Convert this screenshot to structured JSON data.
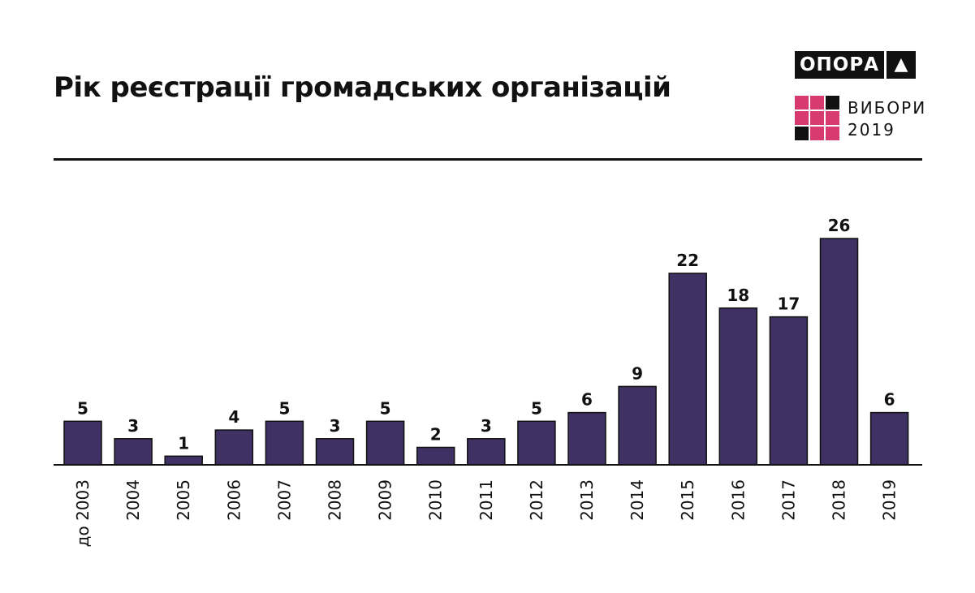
{
  "header": {
    "title": "Рік реєстрації громадських організацій"
  },
  "brand": {
    "name": "ОПОРА",
    "mark_symbol": "▲",
    "elections_label": "ВИБОРИ",
    "elections_year": "2019",
    "grid_colors": [
      "#d63a6e",
      "#d63a6e",
      "#111111",
      "#d63a6e",
      "#d63a6e",
      "#d63a6e",
      "#111111",
      "#d63a6e",
      "#d63a6e"
    ]
  },
  "colors": {
    "bar": "#3f3163",
    "bar_outline": "#111111",
    "text": "#111111",
    "accent": "#d63a6e"
  },
  "chart_data": {
    "type": "bar",
    "title": "Рік реєстрації громадських організацій",
    "categories": [
      "до 2003",
      "2004",
      "2005",
      "2006",
      "2007",
      "2008",
      "2009",
      "2010",
      "2011",
      "2012",
      "2013",
      "2014",
      "2015",
      "2016",
      "2017",
      "2018",
      "2019"
    ],
    "values": [
      5,
      3,
      1,
      4,
      5,
      3,
      5,
      2,
      3,
      5,
      6,
      9,
      22,
      18,
      17,
      26,
      6
    ],
    "ylim": [
      0,
      26
    ],
    "grid": false,
    "legend": "none",
    "data_labels": true,
    "xtick_rotation": "vertical"
  }
}
